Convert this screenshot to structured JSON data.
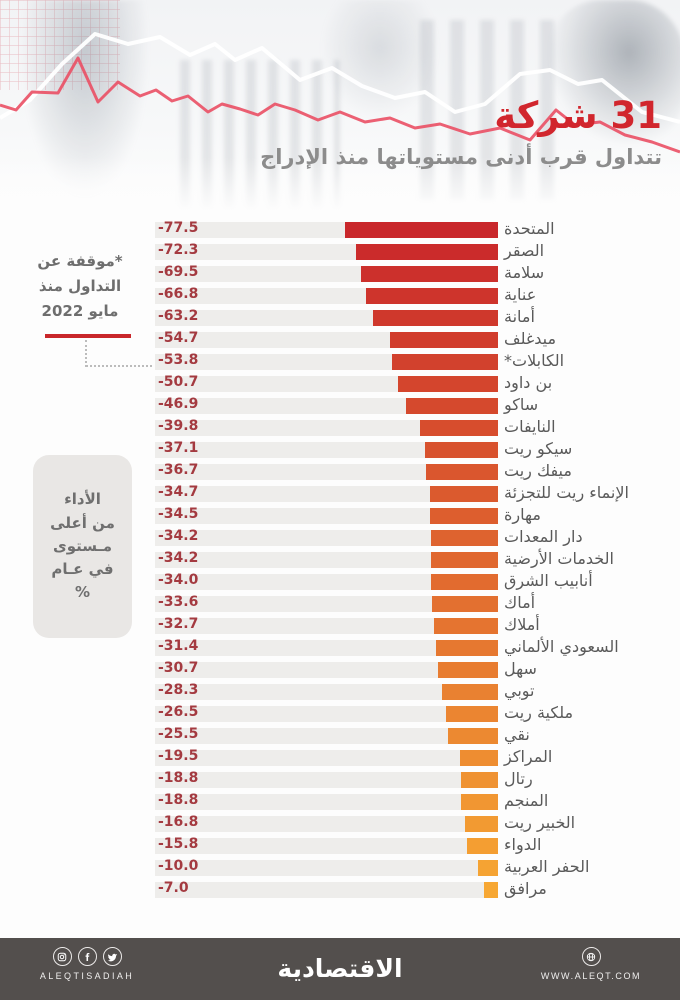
{
  "header": {
    "title": "31 شركة",
    "subtitle": "تتداول قرب أدنى مستوياتها منذ الإدراج"
  },
  "annotations": {
    "suspended_note": {
      "lines": [
        "*موقفة عن",
        "التداول منذ",
        "مايو 2022"
      ],
      "underline_color": "#c9272b",
      "points_to": "الكابلات*"
    },
    "axis_note": {
      "lines": [
        "الأداء",
        "من أعلى",
        "مـستوى",
        "في عـام",
        "%"
      ]
    }
  },
  "chart_data": {
    "type": "bar",
    "orientation": "horizontal-rtl",
    "title": "31 شركة",
    "subtitle": "تتداول قرب أدنى مستوياتها منذ الإدراج",
    "unit": "%",
    "value_meaning": "الأداء من أعلى مستوى في عام %",
    "categories": [
      "المتحدة",
      "الصقر",
      "سلامة",
      "عناية",
      "أمانة",
      "ميدغلف",
      "الكابلات*",
      "بن داود",
      "ساكو",
      "النايفات",
      "سيكو ريت",
      "ميفك ريت",
      "الإنماء ريت للتجزئة",
      "مهارة",
      "دار المعدات",
      "الخدمات الأرضية",
      "أنابيب الشرق",
      "أماك",
      "أملاك",
      "السعودي الألماني",
      "سهل",
      "توبي",
      "ملكية ريت",
      "نقي",
      "المراكز",
      "رتال",
      "المنجم",
      "الخبير ريت",
      "الدواء",
      "الحفر العربية",
      "مرافق"
    ],
    "values": [
      -77.5,
      -72.3,
      -69.5,
      -66.8,
      -63.2,
      -54.7,
      -53.8,
      -50.7,
      -46.9,
      -39.8,
      -37.1,
      -36.7,
      -34.7,
      -34.5,
      -34.2,
      -34.2,
      -34.0,
      -33.6,
      -32.7,
      -31.4,
      -30.7,
      -28.3,
      -26.5,
      -25.5,
      -19.5,
      -18.8,
      -18.8,
      -16.8,
      -15.8,
      -10.0,
      -7.0
    ],
    "bar_color_top": "#c9272b",
    "bar_color_bottom": "#f7a733",
    "track_color": "#eeedeb",
    "value_color": "#a43a40",
    "label_color": "#5a5a5a",
    "legend": "off",
    "grid": "off"
  },
  "header_colors": {
    "title_red": "#d1262d",
    "subtitle_gray": "#8c8c8c",
    "line_pink": "#ea4f64",
    "line_white": "#ffffff"
  },
  "footer": {
    "handle": "ALEQTISADIAH",
    "logo": "الاقتصادية",
    "website": "WWW.ALEQT.COM",
    "background": "#534f4d"
  }
}
